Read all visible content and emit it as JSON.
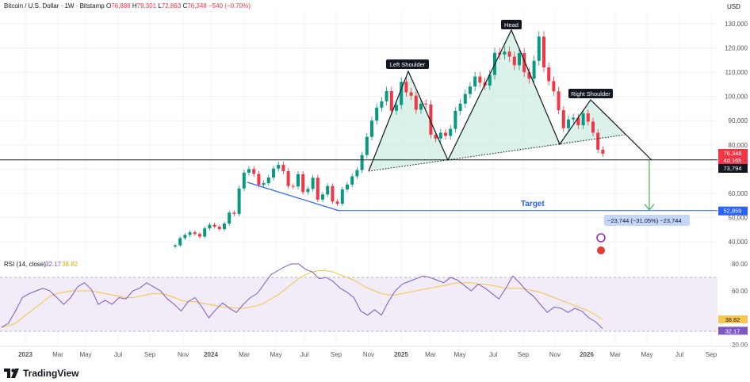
{
  "header": {
    "symbol": "Bitcoin / U.S. Dollar · 1W · Bitstamp",
    "o_label": "O",
    "o_value": "76,888",
    "h_label": "H",
    "h_value": "79,301",
    "l_label": "L",
    "l_value": "72,863",
    "c_label": "C",
    "c_value": "76,348",
    "change": "−540 (−0.70%)"
  },
  "currency": "USD",
  "brand": "TradingView",
  "colors": {
    "up": "#089981",
    "down": "#f23645",
    "pattern_fill": "#cdeee2",
    "neckline_down": "#2962ff",
    "target": "#2962ff",
    "arrow": "#4caf50",
    "rsi": "#7e57c2",
    "rsi_ma": "#f4c542"
  },
  "chart_data": [
    {
      "type": "candlestick",
      "title": "Bitcoin / U.S. Dollar · 1W · Bitstamp",
      "unit": "USD",
      "price_ticks": [
        "130,000",
        "120,000",
        "110,000",
        "100,000",
        "90,000",
        "80,000",
        "70,000",
        "60,000",
        "50,000",
        "40,000"
      ],
      "x_ticks": [
        "2023",
        "Mar",
        "May",
        "Jul",
        "Sep",
        "Nov",
        "2024",
        "Mar",
        "May",
        "Jul",
        "Sep",
        "Nov",
        "2025",
        "Mar",
        "May",
        "Jul",
        "Sep",
        "Nov",
        "2026",
        "Mar",
        "May",
        "Jul",
        "Sep"
      ],
      "approx_weekly_closes": [
        38500,
        41500,
        42800,
        43900,
        43200,
        42100,
        45500,
        47000,
        46200,
        45200,
        47500,
        52000,
        51500,
        62000,
        68500,
        70000,
        68000,
        63500,
        64200,
        66500,
        70200,
        71800,
        69100,
        63000,
        62800,
        67900,
        60500,
        61800,
        66400,
        57400,
        59500,
        63000,
        56600,
        55700,
        61600,
        63600,
        67000,
        69600,
        75800,
        83300,
        90000,
        95400,
        98000,
        102200,
        94100,
        96500,
        106000,
        101700,
        100300,
        94500,
        97000,
        96700,
        84200,
        82600,
        85000,
        83700,
        86600,
        94000,
        97000,
        101000,
        104100,
        108200,
        105700,
        104500,
        108900,
        118000,
        117300,
        118500,
        116400,
        112900,
        117900,
        110000,
        107300,
        114700,
        124700,
        112000,
        106300,
        102100,
        94300,
        86900,
        90500,
        91200,
        88100,
        93000,
        89600,
        85000,
        78000,
        76348
      ],
      "annotations": {
        "left_shoulder": "Left Shoulder",
        "head": "Head",
        "right_shoulder": "Right Shoulder",
        "target": "Target",
        "measure": "−23,744 (−31.05%) −23,744"
      },
      "levels": [
        {
          "label": "76,348",
          "sub": "4d 16h",
          "kind": "last_price"
        },
        {
          "label": "73,794",
          "kind": "neckline_break_level"
        },
        {
          "label": "52,859",
          "kind": "target"
        }
      ]
    },
    {
      "type": "line",
      "title": "RSI (14, close)",
      "rsi_value": "32.17",
      "ma_value": "38.82",
      "y_ticks": [
        "80.00",
        "60.00",
        "40.00",
        "20.00"
      ],
      "overbought": 70,
      "oversold": 30,
      "rsi_values": [
        33,
        36,
        45,
        55,
        58,
        60,
        62,
        60,
        55,
        50,
        55,
        63,
        66,
        61,
        50,
        53,
        50,
        55,
        54,
        60,
        62,
        66,
        63,
        60,
        54,
        50,
        45,
        52,
        55,
        48,
        40,
        46,
        51,
        47,
        44,
        50,
        55,
        58,
        65,
        72,
        75,
        78,
        80,
        80,
        76,
        74,
        69,
        70,
        67,
        62,
        59,
        55,
        45,
        42,
        46,
        42,
        52,
        60,
        65,
        67,
        69,
        71,
        70,
        68,
        66,
        70,
        68,
        64,
        60,
        65,
        62,
        58,
        54,
        62,
        71,
        66,
        60,
        56,
        50,
        44,
        48,
        47,
        44,
        47,
        45,
        40,
        37,
        32
      ],
      "ma_values": [
        33,
        34,
        36,
        40,
        44,
        48,
        52,
        56,
        58,
        59,
        60,
        60,
        60,
        60,
        59,
        58,
        57,
        56,
        55,
        55,
        56,
        57,
        58,
        58,
        57,
        55,
        53,
        52,
        52,
        51,
        50,
        49,
        48,
        48,
        47,
        47,
        48,
        49,
        51,
        54,
        57,
        61,
        65,
        69,
        72,
        74,
        75,
        75,
        74,
        72,
        70,
        68,
        65,
        62,
        60,
        58,
        57,
        57,
        58,
        59,
        60,
        61,
        62,
        63,
        64,
        65,
        66,
        66,
        66,
        65,
        65,
        64,
        63,
        62,
        62,
        62,
        61,
        60,
        59,
        57,
        55,
        53,
        51,
        49,
        47,
        45,
        42,
        38.82
      ]
    }
  ]
}
